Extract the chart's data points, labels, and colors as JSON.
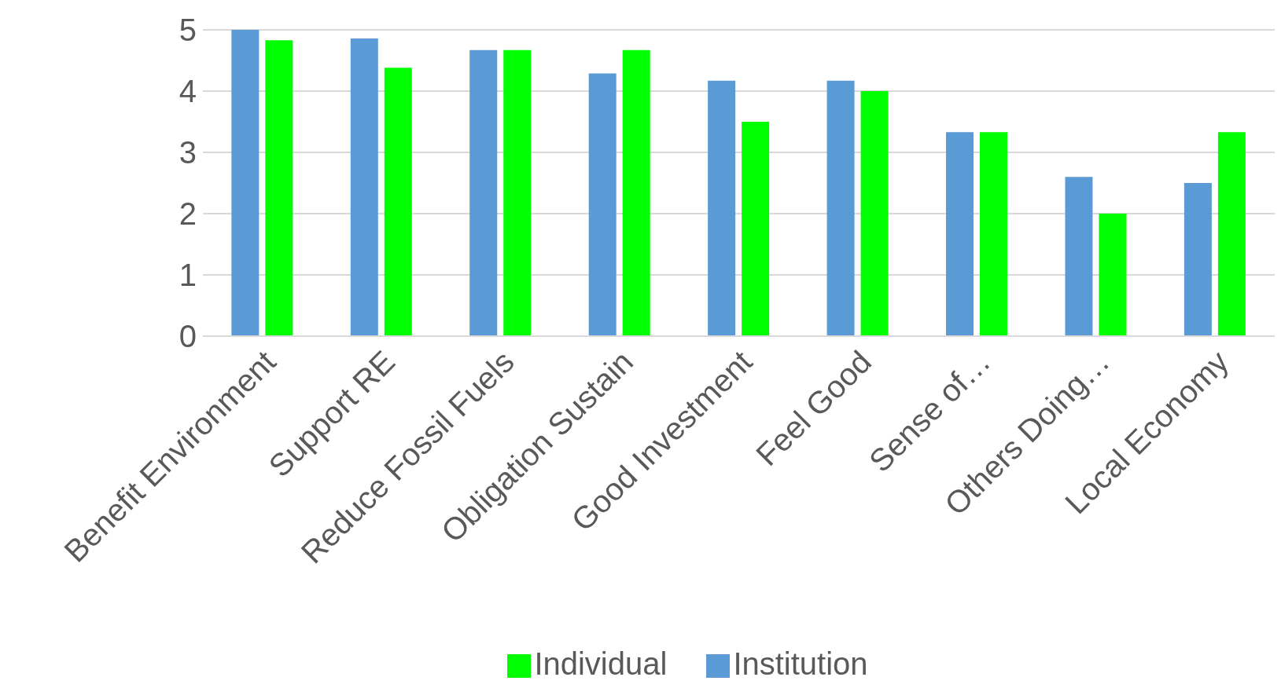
{
  "chart_data": {
    "type": "bar",
    "categories": [
      "Benefit Environment",
      "Support RE",
      "Reduce Fossil Fuels",
      "Obligation Sustain",
      "Good Investment",
      "Feel Good",
      "Sense of…",
      "Others Doing…",
      "Local Economy"
    ],
    "series": [
      {
        "name": "Institution",
        "color": "#5b9bd5",
        "values": [
          5,
          4.86,
          4.67,
          4.29,
          4.17,
          4.17,
          3.33,
          2.6,
          2.5
        ]
      },
      {
        "name": "Individual",
        "color": "#00ff00",
        "values": [
          4.83,
          4.38,
          4.67,
          4.67,
          3.5,
          4.0,
          3.33,
          2.0,
          3.33
        ]
      }
    ],
    "ylim": [
      0,
      5
    ],
    "yticks": [
      0,
      1,
      2,
      3,
      4,
      5
    ],
    "grid": "y",
    "legend": "bottom"
  }
}
